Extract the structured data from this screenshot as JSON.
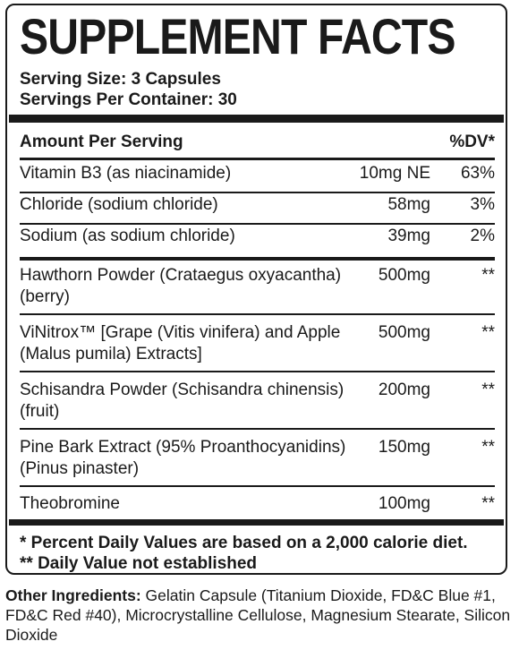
{
  "title": "SUPPLEMENT FACTS",
  "serving_size": "Serving Size: 3 Capsules",
  "servings_per_container": "Servings Per Container: 30",
  "header": {
    "amount": "Amount Per Serving",
    "dv": "%DV*"
  },
  "rows": [
    {
      "name": "Vitamin B3 (as niacinamide)",
      "amount": "10mg NE",
      "dv": "63%"
    },
    {
      "name": "Chloride (sodium chloride)",
      "amount": "58mg",
      "dv": "3%"
    },
    {
      "name": "Sodium (as sodium chloride)",
      "amount": "39mg",
      "dv": "2%"
    },
    {
      "name": "Hawthorn Powder (Crataegus oxyacantha) (berry)",
      "amount": "500mg",
      "dv": "**"
    },
    {
      "name": "ViNitrox™ [Grape (Vitis vinifera) and Apple (Malus pumila) Extracts]",
      "amount": "500mg",
      "dv": "**"
    },
    {
      "name": "Schisandra Powder (Schisandra chinensis) (fruit)",
      "amount": "200mg",
      "dv": "**"
    },
    {
      "name": "Pine Bark Extract (95% Proanthocyanidins) (Pinus pinaster)",
      "amount": "150mg",
      "dv": "**"
    },
    {
      "name": "Theobromine",
      "amount": "100mg",
      "dv": "**"
    }
  ],
  "footnote_1": "* Percent Daily Values are based on a 2,000 calorie diet.",
  "footnote_2": "** Daily Value not established",
  "other_ingredients": {
    "label": "Other Ingredients:",
    "text": " Gelatin Capsule (Titanium Dioxide, FD&C Blue #1, FD&C Red #40), Microcrystalline Cellulose, Magnesium Stearate, Silicon Dioxide"
  }
}
